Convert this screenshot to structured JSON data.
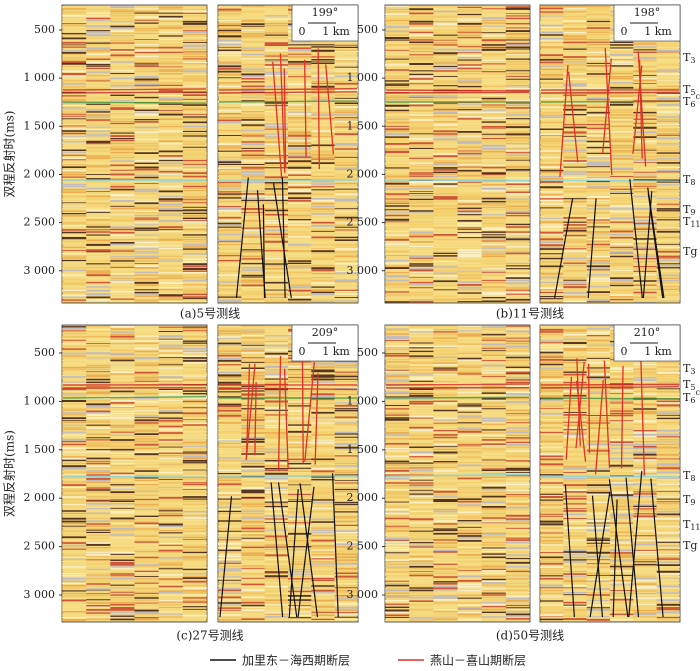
{
  "y_axis_label": "双程反射时(ms)",
  "yticks": [
    500,
    {
      "value": 1000,
      "label": "1 000"
    },
    {
      "value": 1500,
      "label": "1 500"
    },
    {
      "value": 2000,
      "label": "2 000"
    },
    {
      "value": 2500,
      "label": "2 500"
    },
    {
      "value": 3000,
      "label": "3 000"
    }
  ],
  "panels": [
    {
      "caption": "(a)5号测线",
      "azimuth": "199°",
      "scale_start": "0",
      "scale_end": "1 km"
    },
    {
      "caption": "(b)11号测线",
      "azimuth": "198°",
      "scale_start": "0",
      "scale_end": "1 km"
    },
    {
      "caption": "(c)27号测线",
      "azimuth": "209°",
      "scale_start": "0",
      "scale_end": "1 km"
    },
    {
      "caption": "(d)50号测线",
      "azimuth": "210°",
      "scale_start": "0",
      "scale_end": "1 km"
    }
  ],
  "horizons": [
    {
      "letter": "T",
      "sub": "3"
    },
    {
      "letter": "T",
      "sub": "5"
    },
    {
      "letter": "T",
      "sub": "6",
      "sup": "c"
    },
    {
      "letter": "T",
      "sub": "8"
    },
    {
      "letter": "T",
      "sub": "9"
    },
    {
      "letter": "T",
      "sub": "11"
    },
    {
      "letter": "Tg"
    }
  ],
  "legend": [
    {
      "label": "加里东－海西期断层",
      "color": "#111111"
    },
    {
      "label": "燕山－喜山期断层",
      "color": "#e0302a"
    }
  ]
}
